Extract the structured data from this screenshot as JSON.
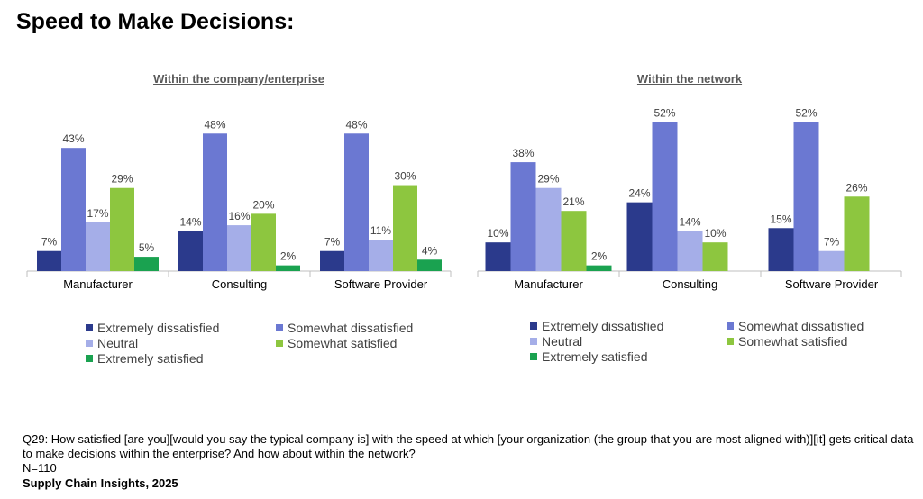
{
  "page": {
    "title": "Speed to Make Decisions:",
    "footnote": "Q29: How satisfied [are you][would you say the typical company is] with the speed at which [your organization (the group that you are most aligned with)][it] gets critical data to make decisions within the enterprise? And how about within the network?",
    "sample": "N=110",
    "source": "Supply Chain Insights, 2025"
  },
  "colors": {
    "Extremely dissatisfied": "#2b3a8c",
    "Somewhat dissatisfied": "#6b78d2",
    "Neutral": "#a5aee8",
    "Somewhat satisfied": "#8dc63f",
    "Extremely satisfied": "#1aa250"
  },
  "chart_data": [
    {
      "type": "bar",
      "title": "Within the company/enterprise",
      "categories": [
        "Manufacturer",
        "Consulting",
        "Software Provider"
      ],
      "ylim": [
        0,
        55
      ],
      "series": [
        {
          "name": "Extremely dissatisfied",
          "values": [
            7,
            14,
            7
          ],
          "labels": [
            "7%",
            "14%",
            "7%"
          ]
        },
        {
          "name": "Somewhat dissatisfied",
          "values": [
            43,
            48,
            48
          ],
          "labels": [
            "43%",
            "48%",
            "48%"
          ]
        },
        {
          "name": "Neutral",
          "values": [
            17,
            16,
            11
          ],
          "labels": [
            "17%",
            "16%",
            "11%"
          ]
        },
        {
          "name": "Somewhat satisfied",
          "values": [
            29,
            20,
            30
          ],
          "labels": [
            "29%",
            "20%",
            "30%"
          ]
        },
        {
          "name": "Extremely satisfied",
          "values": [
            5,
            2,
            4
          ],
          "labels": [
            "5%",
            "2%",
            "4%"
          ]
        }
      ],
      "legend": "bottom"
    },
    {
      "type": "bar",
      "title": "Within the network",
      "categories": [
        "Manufacturer",
        "Consulting",
        "Software Provider"
      ],
      "ylim": [
        0,
        55
      ],
      "series": [
        {
          "name": "Extremely dissatisfied",
          "values": [
            10,
            24,
            15
          ],
          "labels": [
            "10%",
            "24%",
            "15%"
          ]
        },
        {
          "name": "Somewhat dissatisfied",
          "values": [
            38,
            52,
            52
          ],
          "labels": [
            "38%",
            "52%",
            "52%"
          ]
        },
        {
          "name": "Neutral",
          "values": [
            29,
            14,
            7
          ],
          "labels": [
            "29%",
            "14%",
            "7%"
          ]
        },
        {
          "name": "Somewhat satisfied",
          "values": [
            21,
            10,
            26
          ],
          "labels": [
            "21%",
            "10%",
            "26%"
          ]
        },
        {
          "name": "Extremely satisfied",
          "values": [
            2,
            null,
            null
          ],
          "labels": [
            "2%",
            "",
            ""
          ]
        }
      ],
      "legend": "bottom"
    }
  ]
}
